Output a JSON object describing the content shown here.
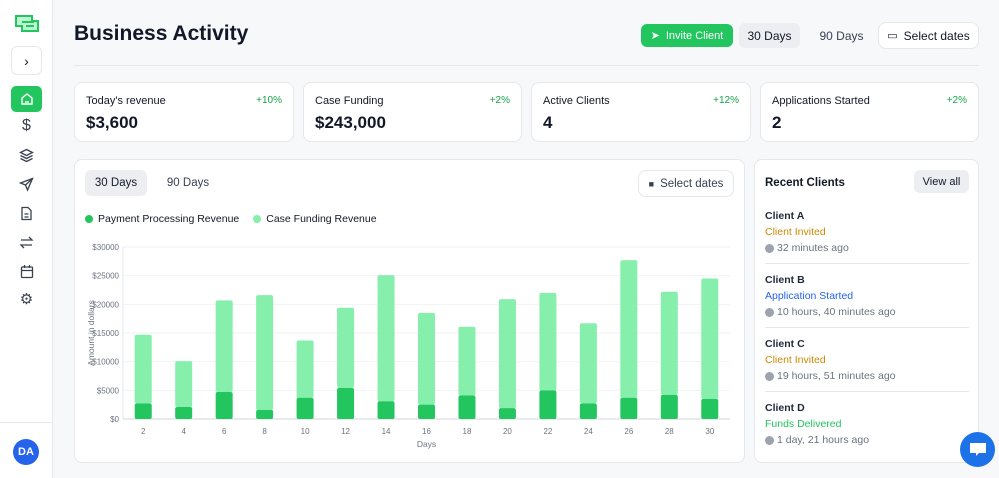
{
  "sidebar": {
    "items": [
      "home",
      "revenue",
      "layers",
      "send",
      "document",
      "transfers",
      "calendar",
      "settings"
    ],
    "avatar": "DA"
  },
  "header": {
    "title": "Business Activity",
    "invite_label": "Invite Client",
    "range_30": "30 Days",
    "range_90": "90 Days",
    "select_dates": "Select dates"
  },
  "stats": [
    {
      "label": "Today's revenue",
      "delta": "+10%",
      "value": "$3,600"
    },
    {
      "label": "Case Funding",
      "delta": "+2%",
      "value": "$243,000"
    },
    {
      "label": "Active Clients",
      "delta": "+12%",
      "value": "4"
    },
    {
      "label": "Applications Started",
      "delta": "+2%",
      "value": "2"
    }
  ],
  "chart_panel": {
    "tab_30": "30 Days",
    "tab_90": "90 Days",
    "select_dates": "Select dates"
  },
  "chart_data": {
    "type": "bar",
    "stacked": true,
    "categories": [
      "2",
      "4",
      "6",
      "8",
      "10",
      "12",
      "14",
      "16",
      "18",
      "20",
      "22",
      "24",
      "26",
      "28",
      "30"
    ],
    "series": [
      {
        "name": "Payment Processing Revenue",
        "color": "#22c55e",
        "values": [
          2700,
          2100,
          4700,
          1600,
          3700,
          5400,
          3100,
          2500,
          4100,
          1900,
          5000,
          2700,
          3700,
          4200,
          3500
        ]
      },
      {
        "name": "Case Funding Revenue",
        "color": "#86efac",
        "values": [
          12000,
          8000,
          16000,
          20000,
          10000,
          14000,
          22000,
          16000,
          12000,
          19000,
          17000,
          14000,
          24000,
          18000,
          21000
        ]
      }
    ],
    "xlabel": "Days",
    "ylabel": "Amount in dollars",
    "ylim": [
      0,
      30000
    ],
    "yticks": [
      "$0",
      "$5000",
      "$10000",
      "$15000",
      "$20000",
      "$25000",
      "$30000"
    ],
    "grid": true,
    "legend": "top-left"
  },
  "recent": {
    "title": "Recent Clients",
    "view_all": "View all",
    "clients": [
      {
        "name": "Client A",
        "status": "Client Invited",
        "status_color": "#ca8a04",
        "time": "32 minutes ago"
      },
      {
        "name": "Client B",
        "status": "Application Started",
        "status_color": "#2563eb",
        "time": "10 hours, 40 minutes ago"
      },
      {
        "name": "Client C",
        "status": "Client Invited",
        "status_color": "#ca8a04",
        "time": "19 hours, 51 minutes ago"
      },
      {
        "name": "Client D",
        "status": "Funds Delivered",
        "status_color": "#22c55e",
        "time": "1 day, 21 hours ago"
      }
    ]
  }
}
